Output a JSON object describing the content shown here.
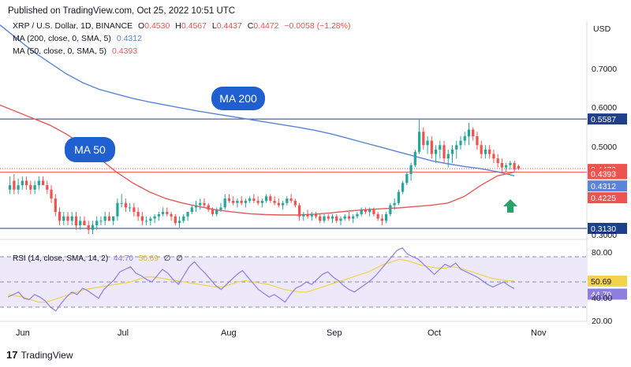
{
  "header": {
    "published": "Published on TradingView.com, Oct 25, 2022 10:51 UTC"
  },
  "legend": {
    "symbol": "XRP / U.S. Dollar, 1D, BINANCE",
    "ohlc": {
      "o_label": "O",
      "o": "0.4530",
      "h_label": "H",
      "h": "0.4567",
      "l_label": "L",
      "l": "0.4437",
      "c_label": "C",
      "c": "0.4472",
      "change": "−0.0058 (−1.28%)"
    },
    "ma200": {
      "label": "MA (200, close, 0, SMA, 5)",
      "value": "0.4312"
    },
    "ma50": {
      "label": "MA (50, close, 0, SMA, 5)",
      "value": "0.4393"
    }
  },
  "footer": {
    "brand": "TradingView",
    "logo": "17"
  },
  "colors": {
    "up": "#26a69a",
    "down": "#ef5350",
    "ma200": "#5b84d6",
    "ma50": "#e35a5a",
    "level_line": "#1f3f8a",
    "rsi": "#8d7ee0",
    "rsi_ma": "#f0d24a",
    "rsi_band": "#ede9fb",
    "arrow": "#26a269"
  },
  "chart_data": [
    {
      "type": "candlestick",
      "title": "XRP / U.S. Dollar, 1D, BINANCE",
      "currency_label": "USD",
      "y_ticks": [
        "0.7000",
        "0.6000",
        "0.5000"
      ],
      "y_range": [
        0.29,
        0.78
      ],
      "x_ticks": [
        "Jun",
        "Jul",
        "Aug",
        "Sep",
        "Oct",
        "Nov"
      ],
      "price_tags": [
        {
          "text": "0.5587",
          "kind": "level"
        },
        {
          "text": "0.4472",
          "kind": "price"
        },
        {
          "text": "0.4393",
          "kind": "ma50"
        },
        {
          "text": "0.4312",
          "kind": "ma200"
        },
        {
          "text": "0.4225",
          "kind": "ma50_dim"
        },
        {
          "text": "0.3130",
          "kind": "level"
        }
      ],
      "horizontal_levels": [
        0.5587,
        0.313
      ],
      "annotations": [
        "MA 200",
        "MA 50"
      ],
      "candles": [
        [
          0.4,
          0.43,
          0.39,
          0.41
        ],
        [
          0.42,
          0.435,
          0.39,
          0.4
        ],
        [
          0.4,
          0.425,
          0.39,
          0.41
        ],
        [
          0.41,
          0.43,
          0.4,
          0.42
        ],
        [
          0.42,
          0.43,
          0.4,
          0.41
        ],
        [
          0.41,
          0.42,
          0.39,
          0.4
        ],
        [
          0.4,
          0.42,
          0.39,
          0.41
        ],
        [
          0.41,
          0.43,
          0.4,
          0.42
        ],
        [
          0.42,
          0.43,
          0.41,
          0.41
        ],
        [
          0.41,
          0.42,
          0.39,
          0.4
        ],
        [
          0.4,
          0.41,
          0.37,
          0.38
        ],
        [
          0.38,
          0.39,
          0.34,
          0.35
        ],
        [
          0.35,
          0.36,
          0.32,
          0.33
        ],
        [
          0.33,
          0.35,
          0.32,
          0.34
        ],
        [
          0.34,
          0.35,
          0.32,
          0.33
        ],
        [
          0.33,
          0.35,
          0.32,
          0.34
        ],
        [
          0.34,
          0.35,
          0.31,
          0.32
        ],
        [
          0.32,
          0.34,
          0.31,
          0.33
        ],
        [
          0.33,
          0.34,
          0.32,
          0.32
        ],
        [
          0.32,
          0.33,
          0.3,
          0.31
        ],
        [
          0.31,
          0.33,
          0.3,
          0.32
        ],
        [
          0.32,
          0.34,
          0.31,
          0.33
        ],
        [
          0.33,
          0.34,
          0.32,
          0.33
        ],
        [
          0.33,
          0.35,
          0.32,
          0.34
        ],
        [
          0.34,
          0.35,
          0.33,
          0.33
        ],
        [
          0.33,
          0.34,
          0.32,
          0.34
        ],
        [
          0.34,
          0.38,
          0.33,
          0.37
        ],
        [
          0.37,
          0.39,
          0.36,
          0.37
        ],
        [
          0.37,
          0.38,
          0.35,
          0.36
        ],
        [
          0.36,
          0.37,
          0.35,
          0.36
        ],
        [
          0.36,
          0.37,
          0.34,
          0.35
        ],
        [
          0.35,
          0.36,
          0.33,
          0.34
        ],
        [
          0.34,
          0.35,
          0.32,
          0.33
        ],
        [
          0.33,
          0.34,
          0.32,
          0.33
        ],
        [
          0.33,
          0.34,
          0.32,
          0.335
        ],
        [
          0.335,
          0.345,
          0.325,
          0.34
        ],
        [
          0.34,
          0.35,
          0.33,
          0.345
        ],
        [
          0.345,
          0.36,
          0.34,
          0.35
        ],
        [
          0.35,
          0.36,
          0.34,
          0.345
        ],
        [
          0.345,
          0.35,
          0.33,
          0.34
        ],
        [
          0.34,
          0.345,
          0.32,
          0.325
        ],
        [
          0.325,
          0.34,
          0.315,
          0.33
        ],
        [
          0.33,
          0.345,
          0.325,
          0.34
        ],
        [
          0.34,
          0.35,
          0.33,
          0.35
        ],
        [
          0.35,
          0.365,
          0.345,
          0.36
        ],
        [
          0.36,
          0.375,
          0.35,
          0.365
        ],
        [
          0.365,
          0.38,
          0.355,
          0.37
        ],
        [
          0.37,
          0.38,
          0.36,
          0.365
        ],
        [
          0.365,
          0.37,
          0.35,
          0.355
        ],
        [
          0.355,
          0.36,
          0.34,
          0.345
        ],
        [
          0.345,
          0.36,
          0.34,
          0.355
        ],
        [
          0.355,
          0.37,
          0.35,
          0.36
        ],
        [
          0.36,
          0.39,
          0.355,
          0.38
        ],
        [
          0.38,
          0.39,
          0.37,
          0.375
        ],
        [
          0.375,
          0.385,
          0.365,
          0.37
        ],
        [
          0.37,
          0.38,
          0.36,
          0.375
        ],
        [
          0.375,
          0.385,
          0.365,
          0.37
        ],
        [
          0.37,
          0.38,
          0.36,
          0.375
        ],
        [
          0.375,
          0.385,
          0.37,
          0.38
        ],
        [
          0.38,
          0.39,
          0.37,
          0.375
        ],
        [
          0.375,
          0.385,
          0.365,
          0.37
        ],
        [
          0.37,
          0.38,
          0.36,
          0.375
        ],
        [
          0.375,
          0.39,
          0.37,
          0.385
        ],
        [
          0.385,
          0.39,
          0.37,
          0.375
        ],
        [
          0.375,
          0.385,
          0.365,
          0.37
        ],
        [
          0.37,
          0.38,
          0.36,
          0.365
        ],
        [
          0.365,
          0.375,
          0.355,
          0.37
        ],
        [
          0.37,
          0.385,
          0.365,
          0.38
        ],
        [
          0.38,
          0.39,
          0.37,
          0.375
        ],
        [
          0.375,
          0.38,
          0.36,
          0.365
        ],
        [
          0.365,
          0.37,
          0.33,
          0.34
        ],
        [
          0.34,
          0.35,
          0.33,
          0.345
        ],
        [
          0.345,
          0.355,
          0.335,
          0.34
        ],
        [
          0.34,
          0.35,
          0.33,
          0.345
        ],
        [
          0.345,
          0.35,
          0.335,
          0.34
        ],
        [
          0.34,
          0.345,
          0.325,
          0.33
        ],
        [
          0.33,
          0.345,
          0.325,
          0.34
        ],
        [
          0.34,
          0.345,
          0.33,
          0.335
        ],
        [
          0.335,
          0.345,
          0.325,
          0.34
        ],
        [
          0.34,
          0.345,
          0.325,
          0.33
        ],
        [
          0.33,
          0.34,
          0.32,
          0.335
        ],
        [
          0.335,
          0.345,
          0.33,
          0.34
        ],
        [
          0.34,
          0.35,
          0.33,
          0.335
        ],
        [
          0.335,
          0.345,
          0.325,
          0.34
        ],
        [
          0.34,
          0.35,
          0.335,
          0.345
        ],
        [
          0.345,
          0.36,
          0.34,
          0.355
        ],
        [
          0.355,
          0.36,
          0.345,
          0.35
        ],
        [
          0.35,
          0.36,
          0.34,
          0.355
        ],
        [
          0.355,
          0.36,
          0.34,
          0.345
        ],
        [
          0.345,
          0.35,
          0.33,
          0.335
        ],
        [
          0.335,
          0.345,
          0.32,
          0.33
        ],
        [
          0.33,
          0.35,
          0.325,
          0.345
        ],
        [
          0.345,
          0.37,
          0.34,
          0.365
        ],
        [
          0.365,
          0.38,
          0.355,
          0.37
        ],
        [
          0.37,
          0.4,
          0.365,
          0.395
        ],
        [
          0.395,
          0.42,
          0.39,
          0.415
        ],
        [
          0.415,
          0.44,
          0.41,
          0.435
        ],
        [
          0.435,
          0.46,
          0.42,
          0.455
        ],
        [
          0.455,
          0.49,
          0.45,
          0.485
        ],
        [
          0.485,
          0.56,
          0.48,
          0.53
        ],
        [
          0.53,
          0.54,
          0.49,
          0.5
        ],
        [
          0.5,
          0.52,
          0.48,
          0.51
        ],
        [
          0.51,
          0.52,
          0.47,
          0.48
        ],
        [
          0.48,
          0.5,
          0.46,
          0.49
        ],
        [
          0.49,
          0.51,
          0.47,
          0.5
        ],
        [
          0.5,
          0.51,
          0.46,
          0.47
        ],
        [
          0.47,
          0.49,
          0.45,
          0.48
        ],
        [
          0.48,
          0.5,
          0.46,
          0.49
        ],
        [
          0.49,
          0.51,
          0.47,
          0.5
        ],
        [
          0.5,
          0.52,
          0.49,
          0.51
        ],
        [
          0.51,
          0.53,
          0.5,
          0.52
        ],
        [
          0.52,
          0.55,
          0.5,
          0.535
        ],
        [
          0.535,
          0.54,
          0.51,
          0.52
        ],
        [
          0.52,
          0.53,
          0.49,
          0.5
        ],
        [
          0.5,
          0.51,
          0.47,
          0.48
        ],
        [
          0.48,
          0.5,
          0.47,
          0.49
        ],
        [
          0.49,
          0.5,
          0.47,
          0.48
        ],
        [
          0.48,
          0.49,
          0.46,
          0.47
        ],
        [
          0.47,
          0.48,
          0.45,
          0.46
        ],
        [
          0.46,
          0.47,
          0.44,
          0.45
        ],
        [
          0.45,
          0.46,
          0.44,
          0.455
        ],
        [
          0.455,
          0.465,
          0.445,
          0.46
        ],
        [
          0.46,
          0.465,
          0.44,
          0.445
        ],
        [
          0.453,
          0.4567,
          0.4437,
          0.4472
        ]
      ],
      "ma50_values": [
        0.59,
        0.575,
        0.56,
        0.545,
        0.525,
        0.5,
        0.47,
        0.44,
        0.415,
        0.395,
        0.38,
        0.37,
        0.362,
        0.355,
        0.35,
        0.346,
        0.344,
        0.343,
        0.343,
        0.345,
        0.348,
        0.352,
        0.355,
        0.357,
        0.359,
        0.362,
        0.365,
        0.37,
        0.385,
        0.41,
        0.4312,
        0.4393
      ],
      "ma200_values": [
        0.77,
        0.74,
        0.71,
        0.685,
        0.66,
        0.64,
        0.625,
        0.615,
        0.605,
        0.597,
        0.59,
        0.583,
        0.576,
        0.57,
        0.564,
        0.558,
        0.552,
        0.546,
        0.54,
        0.533,
        0.525,
        0.515,
        0.505,
        0.495,
        0.485,
        0.475,
        0.465,
        0.458,
        0.452,
        0.447,
        0.44,
        0.4312
      ]
    },
    {
      "type": "line",
      "title": "RSI (14, close, SMA, 14, 2)",
      "legend_label": "RSI (14, close, SMA, 14, 2)",
      "legend_values": [
        "44.70",
        "50.69",
        "∅",
        "∅"
      ],
      "y_ticks": [
        "80.00",
        "40.00",
        "20.00"
      ],
      "y_range": [
        20,
        80
      ],
      "band": [
        30,
        70
      ],
      "price_tags": [
        {
          "text": "50.69",
          "kind": "rsi_ma"
        },
        {
          "text": "44.70",
          "kind": "rsi"
        }
      ],
      "rsi_values": [
        38,
        40,
        42,
        37,
        36,
        40,
        38,
        35,
        30,
        27,
        33,
        38,
        42,
        40,
        45,
        43,
        40,
        37,
        44,
        48,
        52,
        58,
        60,
        62,
        57,
        55,
        52,
        50,
        55,
        60,
        57,
        52,
        48,
        55,
        62,
        66,
        61,
        57,
        52,
        47,
        44,
        48,
        52,
        56,
        59,
        54,
        49,
        44,
        41,
        38,
        40,
        37,
        34,
        40,
        45,
        47,
        50,
        48,
        52,
        56,
        58,
        54,
        51,
        47,
        44,
        42,
        45,
        48,
        51,
        55,
        60,
        65,
        70,
        75,
        77,
        72,
        70,
        68,
        64,
        60,
        56,
        60,
        64,
        62,
        65,
        60,
        58,
        56,
        54,
        51,
        48,
        46,
        48,
        50,
        47,
        44.7
      ],
      "rsi_ma_values": [
        40,
        39,
        38,
        36,
        34,
        34,
        36,
        38,
        40,
        42,
        44,
        45,
        46,
        47,
        48,
        49,
        50,
        52,
        54,
        54,
        53,
        52,
        51,
        50,
        49,
        48,
        47,
        46,
        46,
        48,
        50,
        51,
        50,
        49,
        48,
        46,
        44,
        43,
        42,
        42,
        44,
        46,
        48,
        50,
        52,
        54,
        56,
        58,
        61,
        64,
        66,
        68,
        67,
        65,
        63,
        62,
        61,
        61,
        62,
        61,
        59,
        57,
        55,
        53,
        52,
        51,
        50.69
      ]
    }
  ]
}
